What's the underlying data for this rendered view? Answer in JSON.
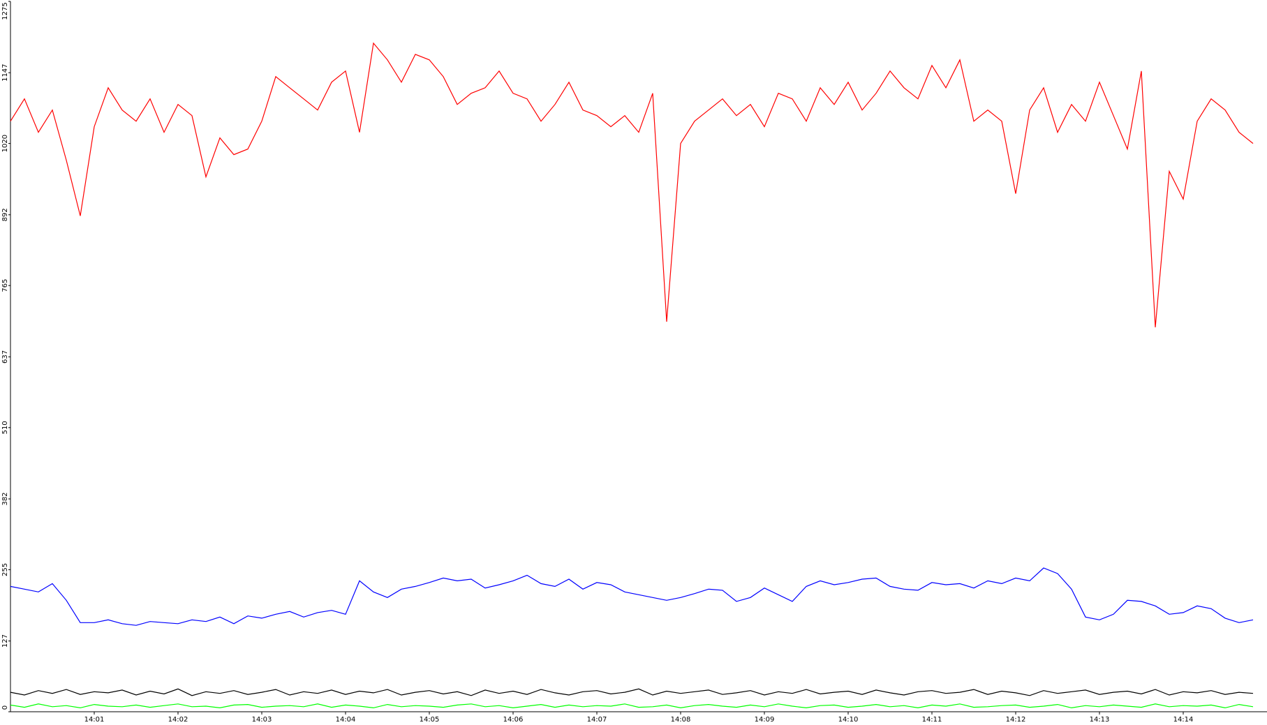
{
  "chart_data": {
    "type": "line",
    "categories": [
      null,
      null,
      null,
      null,
      null,
      null,
      "14:01",
      null,
      null,
      null,
      null,
      null,
      "14:02",
      null,
      null,
      null,
      null,
      null,
      "14:03",
      null,
      null,
      null,
      null,
      null,
      "14:04",
      null,
      null,
      null,
      null,
      null,
      "14:05",
      null,
      null,
      null,
      null,
      null,
      "14:06",
      null,
      null,
      null,
      null,
      null,
      "14:07",
      null,
      null,
      null,
      null,
      null,
      "14:08",
      null,
      null,
      null,
      null,
      null,
      "14:09",
      null,
      null,
      null,
      null,
      null,
      "14:10",
      null,
      null,
      null,
      null,
      null,
      "14:11",
      null,
      null,
      null,
      null,
      null,
      "14:12",
      null,
      null,
      null,
      null,
      null,
      "14:13",
      null,
      null,
      null,
      null,
      null,
      "14:14",
      null,
      null,
      null,
      null,
      null
    ],
    "series": [
      {
        "color": "#ff0000",
        "values": [
          1060,
          1100,
          1040,
          1080,
          990,
          890,
          1050,
          1120,
          1080,
          1060,
          1100,
          1040,
          1090,
          1070,
          960,
          1030,
          1000,
          1010,
          1060,
          1140,
          1120,
          1100,
          1080,
          1130,
          1150,
          1040,
          1200,
          1170,
          1130,
          1180,
          1170,
          1140,
          1090,
          1110,
          1120,
          1150,
          1110,
          1100,
          1060,
          1090,
          1130,
          1080,
          1070,
          1050,
          1070,
          1040,
          1110,
          700,
          1020,
          1060,
          1080,
          1100,
          1070,
          1090,
          1050,
          1110,
          1100,
          1060,
          1120,
          1090,
          1130,
          1080,
          1110,
          1150,
          1120,
          1100,
          1160,
          1120,
          1170,
          1060,
          1080,
          1060,
          930,
          1080,
          1120,
          1040,
          1090,
          1060,
          1130,
          1070,
          1010,
          1150,
          690,
          970,
          920,
          1060,
          1100,
          1080,
          1040,
          1020
        ]
      },
      {
        "color": "#0000ff",
        "values": [
          225,
          220,
          215,
          230,
          200,
          160,
          160,
          165,
          158,
          155,
          162,
          160,
          158,
          165,
          162,
          170,
          158,
          172,
          168,
          175,
          180,
          170,
          178,
          182,
          175,
          235,
          215,
          205,
          220,
          225,
          232,
          240,
          235,
          238,
          222,
          228,
          235,
          245,
          230,
          225,
          238,
          220,
          232,
          228,
          215,
          210,
          205,
          200,
          205,
          212,
          220,
          218,
          198,
          205,
          222,
          210,
          198,
          225,
          235,
          228,
          232,
          238,
          240,
          225,
          220,
          218,
          232,
          228,
          230,
          222,
          235,
          230,
          240,
          235,
          258,
          248,
          220,
          170,
          165,
          175,
          200,
          198,
          190,
          175,
          178,
          190,
          185,
          168,
          160,
          165
        ]
      },
      {
        "color": "#000000",
        "values": [
          35,
          30,
          38,
          33,
          40,
          31,
          36,
          34,
          39,
          30,
          37,
          32,
          41,
          29,
          36,
          33,
          38,
          31,
          35,
          40,
          30,
          36,
          33,
          39,
          31,
          37,
          34,
          40,
          30,
          35,
          38,
          32,
          36,
          29,
          39,
          33,
          37,
          31,
          40,
          34,
          30,
          36,
          38,
          32,
          35,
          41,
          30,
          37,
          33,
          36,
          39,
          31,
          34,
          38,
          30,
          36,
          33,
          40,
          32,
          35,
          37,
          31,
          39,
          34,
          30,
          36,
          38,
          33,
          35,
          40,
          31,
          37,
          34,
          29,
          38,
          33,
          36,
          39,
          31,
          35,
          37,
          32,
          40,
          30,
          36,
          34,
          38,
          31,
          35,
          33
        ]
      },
      {
        "color": "#00ff00",
        "values": [
          12,
          8,
          14,
          9,
          11,
          7,
          13,
          10,
          9,
          12,
          8,
          11,
          14,
          9,
          10,
          7,
          12,
          13,
          8,
          10,
          11,
          9,
          14,
          8,
          12,
          10,
          7,
          13,
          9,
          11,
          10,
          8,
          12,
          14,
          9,
          11,
          7,
          10,
          13,
          8,
          12,
          9,
          11,
          10,
          14,
          8,
          9,
          12,
          7,
          11,
          13,
          10,
          8,
          12,
          9,
          14,
          10,
          7,
          11,
          12,
          8,
          10,
          13,
          9,
          11,
          7,
          12,
          10,
          14,
          8,
          9,
          11,
          12,
          8,
          10,
          13,
          7,
          11,
          9,
          12,
          10,
          8,
          14,
          9,
          11,
          10,
          12,
          7,
          13,
          9
        ]
      }
    ],
    "ylim": [
      0,
      1275
    ],
    "yticks": [
      0,
      127,
      255,
      382,
      510,
      637,
      765,
      892,
      1020,
      1147,
      1275
    ]
  }
}
